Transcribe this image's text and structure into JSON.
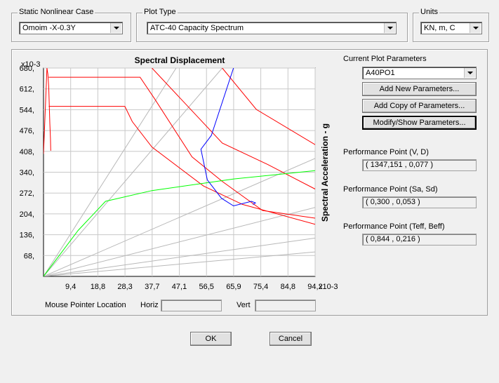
{
  "static_case": {
    "title": "Static Nonlinear Case",
    "value": "Omoim -X-0.3Y"
  },
  "plot_type": {
    "title": "Plot Type",
    "value": "ATC-40 Capacity Spectrum"
  },
  "units": {
    "title": "Units",
    "value": "KN, m, C"
  },
  "chart": {
    "title": "Spectral Displacement",
    "ylabel": "Spectral Acceleration - g",
    "y_multiplier": "x10-3",
    "x_multiplier": "x10-3",
    "yticks": [
      "680,",
      "612,",
      "544,",
      "476,",
      "408,",
      "340,",
      "272,",
      "204,",
      "136,",
      "68,"
    ],
    "xticks": [
      "9,4",
      "18,8",
      "28,3",
      "37,7",
      "47,1",
      "56,5",
      "65,9",
      "75,4",
      "84,8",
      "94,2"
    ]
  },
  "chart_data": {
    "type": "line",
    "title": "Spectral Displacement",
    "xlabel": "",
    "ylabel": "Spectral Acceleration - g",
    "xlim": [
      0,
      94.2
    ],
    "ylim": [
      0,
      680
    ],
    "grid": true,
    "series": [
      {
        "color": "#ff0000",
        "points": [
          [
            0,
            400
          ],
          [
            1.2,
            680
          ],
          [
            1.5,
            660
          ],
          [
            1.8,
            620
          ],
          [
            2.0,
            560
          ],
          [
            2.2,
            500
          ],
          [
            2.4,
            450
          ],
          [
            2.5,
            410
          ]
        ]
      },
      {
        "color": "#ff0000",
        "points": [
          [
            1.8,
            650
          ],
          [
            33.5,
            650
          ],
          [
            38.5,
            580
          ],
          [
            51.5,
            390
          ],
          [
            62,
            310
          ],
          [
            76,
            215
          ],
          [
            94.2,
            190
          ]
        ]
      },
      {
        "color": "#ff0000",
        "points": [
          [
            1.8,
            555
          ],
          [
            28.2,
            555
          ],
          [
            30.8,
            505
          ],
          [
            37.6,
            422
          ],
          [
            55.5,
            295
          ],
          [
            69,
            235
          ],
          [
            94.2,
            170
          ]
        ]
      },
      {
        "color": "#ff0000",
        "points": [
          [
            37.6,
            680
          ],
          [
            62,
            435
          ],
          [
            77.8,
            365
          ],
          [
            94.2,
            285
          ]
        ]
      },
      {
        "color": "#ff0000",
        "points": [
          [
            62,
            680
          ],
          [
            73.8,
            545
          ],
          [
            94.2,
            430
          ]
        ]
      },
      {
        "color": "#00ff00",
        "points": [
          [
            0,
            0
          ],
          [
            12,
            150
          ],
          [
            21.5,
            245
          ],
          [
            37.6,
            280
          ],
          [
            66,
            318
          ],
          [
            94.2,
            345
          ]
        ]
      },
      {
        "color": "#0000ff",
        "points": [
          [
            65.9,
            680
          ],
          [
            58.2,
            460
          ],
          [
            54.6,
            415
          ],
          [
            56.8,
            315
          ],
          [
            61.7,
            255
          ],
          [
            65.9,
            230
          ],
          [
            72.1,
            245
          ],
          [
            73.5,
            240
          ],
          [
            72.6,
            235
          ]
        ]
      },
      {
        "color": "#b8b8b8",
        "points": [
          [
            0,
            0
          ],
          [
            46,
            680
          ]
        ]
      },
      {
        "color": "#b8b8b8",
        "points": [
          [
            0,
            0
          ],
          [
            62,
            680
          ]
        ]
      },
      {
        "color": "#b8b8b8",
        "points": [
          [
            0,
            0
          ],
          [
            94.2,
            385
          ]
        ]
      },
      {
        "color": "#b8b8b8",
        "points": [
          [
            0,
            0
          ],
          [
            94.2,
            225
          ]
        ]
      },
      {
        "color": "#b8b8b8",
        "points": [
          [
            0,
            0
          ],
          [
            94.2,
            125
          ]
        ]
      },
      {
        "color": "#b8b8b8",
        "points": [
          [
            0,
            0
          ],
          [
            94.2,
            80
          ]
        ]
      }
    ]
  },
  "mouse": {
    "label": "Mouse Pointer Location",
    "horiz_label": "Horiz",
    "vert_label": "Vert",
    "horiz_value": "",
    "vert_value": ""
  },
  "params": {
    "title": "Current Plot Parameters",
    "selected": "A40PO1",
    "add_new": "Add New Parameters...",
    "add_copy": "Add Copy of Parameters...",
    "modify": "Modify/Show Parameters..."
  },
  "performance": [
    {
      "label": "Performance Point (V, D)",
      "value": "( 1347,151 , 0,077 )"
    },
    {
      "label": "Performance Point (Sa, Sd)",
      "value": "( 0,300 , 0,053 )"
    },
    {
      "label": "Performance Point (Teff, Beff)",
      "value": "( 0,844 , 0,216 )"
    }
  ],
  "buttons": {
    "ok": "OK",
    "cancel": "Cancel"
  }
}
